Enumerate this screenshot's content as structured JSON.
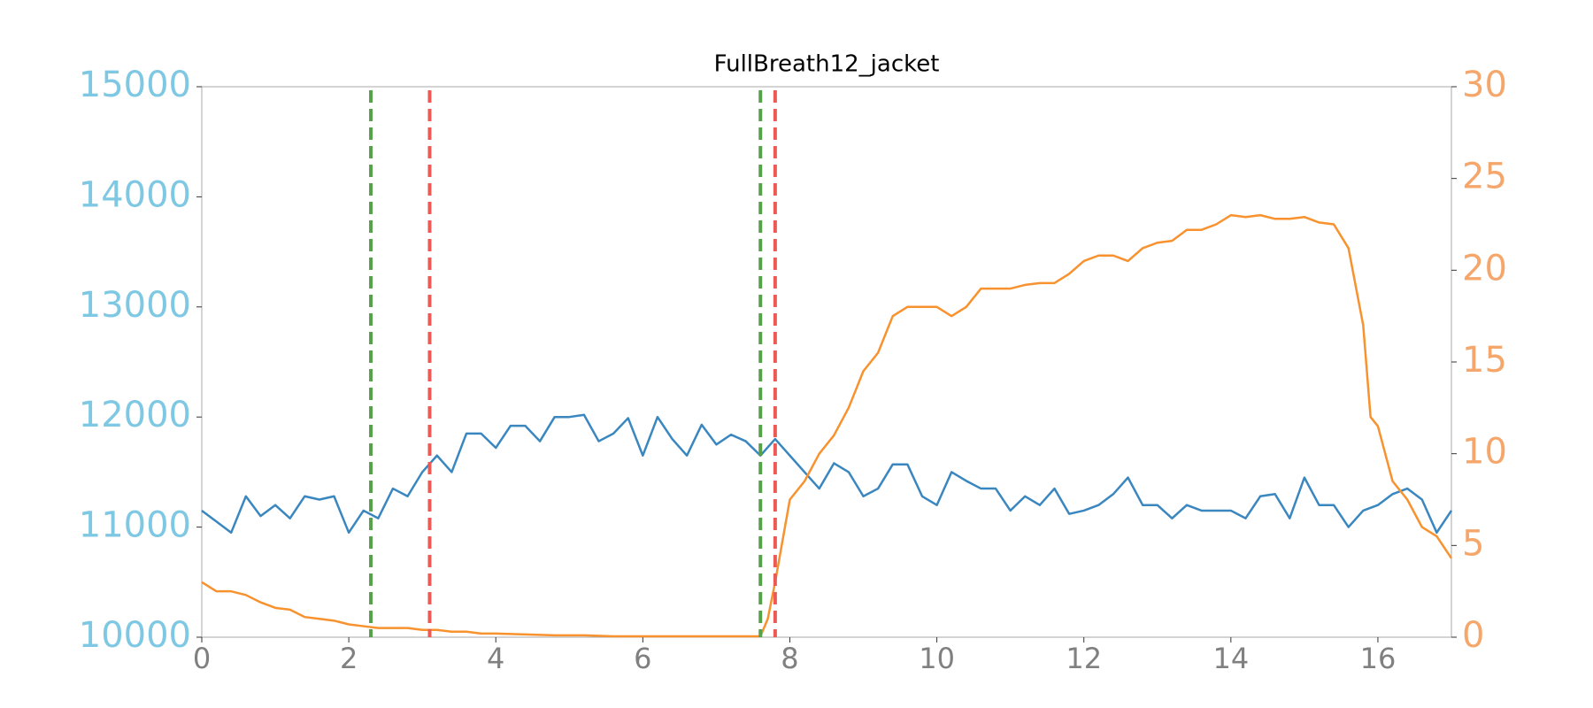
{
  "chart_data": {
    "type": "line",
    "title": "FullBreath12_jacket",
    "xlim": [
      0,
      17
    ],
    "xticks": [
      0,
      2,
      4,
      6,
      8,
      10,
      12,
      14,
      16
    ],
    "ylim": [
      10000,
      15000
    ],
    "yticks": [
      10000,
      11000,
      12000,
      13000,
      14000,
      15000
    ],
    "y2lim": [
      0,
      30
    ],
    "y2ticks": [
      0,
      5,
      10,
      15,
      20,
      25,
      30
    ],
    "y_tick_color": "#7ec8e3",
    "y2_tick_color": "#f5a76b",
    "x_tick_color": "#808080",
    "vlines": [
      {
        "x": 2.3,
        "color": "#56a14a"
      },
      {
        "x": 3.1,
        "color": "#ec5a55"
      },
      {
        "x": 7.6,
        "color": "#56a14a"
      },
      {
        "x": 7.8,
        "color": "#ec5a55"
      }
    ],
    "series": [
      {
        "color": "#3a87c0",
        "x": [
          0,
          0.2,
          0.4,
          0.6,
          0.8,
          1.0,
          1.2,
          1.4,
          1.6,
          1.8,
          2.0,
          2.2,
          2.4,
          2.6,
          2.8,
          3.0,
          3.2,
          3.4,
          3.6,
          3.8,
          4.0,
          4.2,
          4.4,
          4.6,
          4.8,
          5.0,
          5.2,
          5.4,
          5.6,
          5.8,
          6.0,
          6.2,
          6.4,
          6.6,
          6.8,
          7.0,
          7.2,
          7.4,
          7.6,
          7.8,
          8.0,
          8.2,
          8.4,
          8.6,
          8.8,
          9.0,
          9.2,
          9.4,
          9.6,
          9.8,
          10.0,
          10.2,
          10.4,
          10.6,
          10.8,
          11.0,
          11.2,
          11.4,
          11.6,
          11.8,
          12.0,
          12.2,
          12.4,
          12.6,
          12.8,
          13.0,
          13.2,
          13.4,
          13.6,
          13.8,
          14.0,
          14.2,
          14.4,
          14.6,
          14.8,
          15.0,
          15.2,
          15.4,
          15.6,
          15.8,
          16.0,
          16.2,
          16.4,
          16.6,
          16.8,
          17.0
        ],
        "values": [
          11150,
          11050,
          10950,
          11280,
          11100,
          11200,
          11080,
          11280,
          11250,
          11280,
          10950,
          11150,
          11080,
          11350,
          11280,
          11500,
          11650,
          11500,
          11850,
          11850,
          11720,
          11920,
          11920,
          11780,
          12000,
          12000,
          12020,
          11780,
          11850,
          11990,
          11650,
          12000,
          11800,
          11650,
          11930,
          11750,
          11840,
          11780,
          11650,
          11800,
          11650,
          11500,
          11350,
          11580,
          11500,
          11280,
          11350,
          11570,
          11570,
          11280,
          11200,
          11500,
          11420,
          11350,
          11350,
          11150,
          11280,
          11200,
          11350,
          11120,
          11150,
          11200,
          11300,
          11450,
          11200,
          11200,
          11080,
          11200,
          11150,
          11150,
          11150,
          11080,
          11280,
          11300,
          11080,
          11450,
          11200,
          11200,
          11000,
          11150,
          11200,
          11300,
          11350,
          11250,
          10950,
          11150
        ]
      },
      {
        "color": "#f7922e",
        "axis": "y2",
        "x": [
          0,
          0.2,
          0.4,
          0.6,
          0.8,
          1.0,
          1.2,
          1.4,
          1.6,
          1.8,
          2.0,
          2.2,
          2.4,
          2.6,
          2.8,
          3.0,
          3.2,
          3.4,
          3.6,
          3.8,
          4.0,
          4.4,
          4.8,
          5.2,
          5.6,
          6.0,
          6.4,
          6.8,
          7.2,
          7.6,
          7.7,
          7.8,
          8.0,
          8.2,
          8.4,
          8.6,
          8.8,
          9.0,
          9.2,
          9.4,
          9.6,
          9.8,
          10.0,
          10.2,
          10.4,
          10.6,
          10.8,
          11.0,
          11.2,
          11.4,
          11.6,
          11.8,
          12.0,
          12.2,
          12.4,
          12.6,
          12.8,
          13.0,
          13.2,
          13.4,
          13.6,
          13.8,
          14.0,
          14.2,
          14.4,
          14.6,
          14.8,
          15.0,
          15.2,
          15.4,
          15.6,
          15.8,
          15.9,
          16.0,
          16.2,
          16.4,
          16.6,
          16.8,
          17.0
        ],
        "values": [
          3,
          2.5,
          2.5,
          2.3,
          1.9,
          1.6,
          1.5,
          1.1,
          1.0,
          0.9,
          0.7,
          0.6,
          0.5,
          0.5,
          0.5,
          0.4,
          0.4,
          0.3,
          0.3,
          0.2,
          0.2,
          0.15,
          0.1,
          0.1,
          0.05,
          0.05,
          0.05,
          0.05,
          0.05,
          0.05,
          1,
          3,
          7.5,
          8.5,
          10,
          11,
          12.5,
          14.5,
          15.5,
          17.5,
          18,
          18,
          18,
          17.5,
          18,
          19,
          19,
          19,
          19.2,
          19.3,
          19.3,
          19.8,
          20.5,
          20.8,
          20.8,
          20.5,
          21.2,
          21.5,
          21.6,
          22.2,
          22.2,
          22.5,
          23,
          22.9,
          23,
          22.8,
          22.8,
          22.9,
          22.6,
          22.5,
          21.2,
          17,
          12,
          11.5,
          8.5,
          7.5,
          6,
          5.5,
          4.3
        ]
      }
    ]
  }
}
